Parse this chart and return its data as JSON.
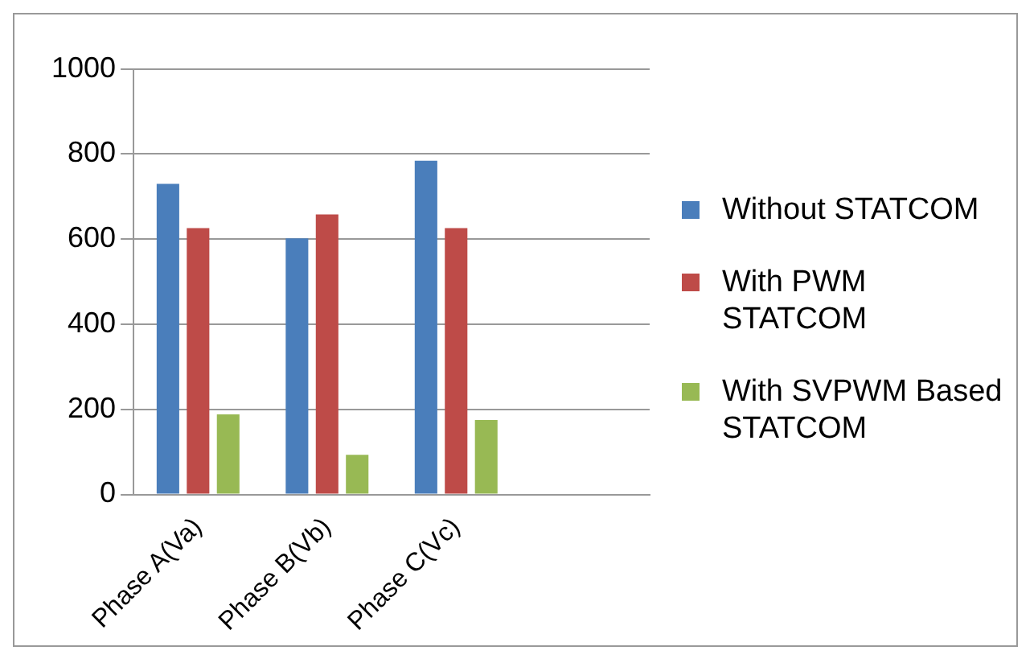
{
  "chart_data": {
    "type": "bar",
    "categories": [
      "Phase A(Va)",
      "Phase B(Vb)",
      "Phase C(Vc)",
      null
    ],
    "series": [
      {
        "name": "Without STATCOM",
        "color": "#4a7ebb",
        "values": [
          730,
          602,
          784,
          null
        ]
      },
      {
        "name": "With PWM STATCOM",
        "color": "#be4b48",
        "values": [
          626,
          658,
          626,
          null
        ]
      },
      {
        "name": "With SVPWM Based STATCOM",
        "color": "#98b954",
        "values": [
          188,
          93,
          175,
          null
        ]
      }
    ],
    "ylim": [
      0,
      1000
    ],
    "yticks": [
      0,
      200,
      400,
      600,
      800,
      1000
    ],
    "grid": "y",
    "legend": "right"
  }
}
